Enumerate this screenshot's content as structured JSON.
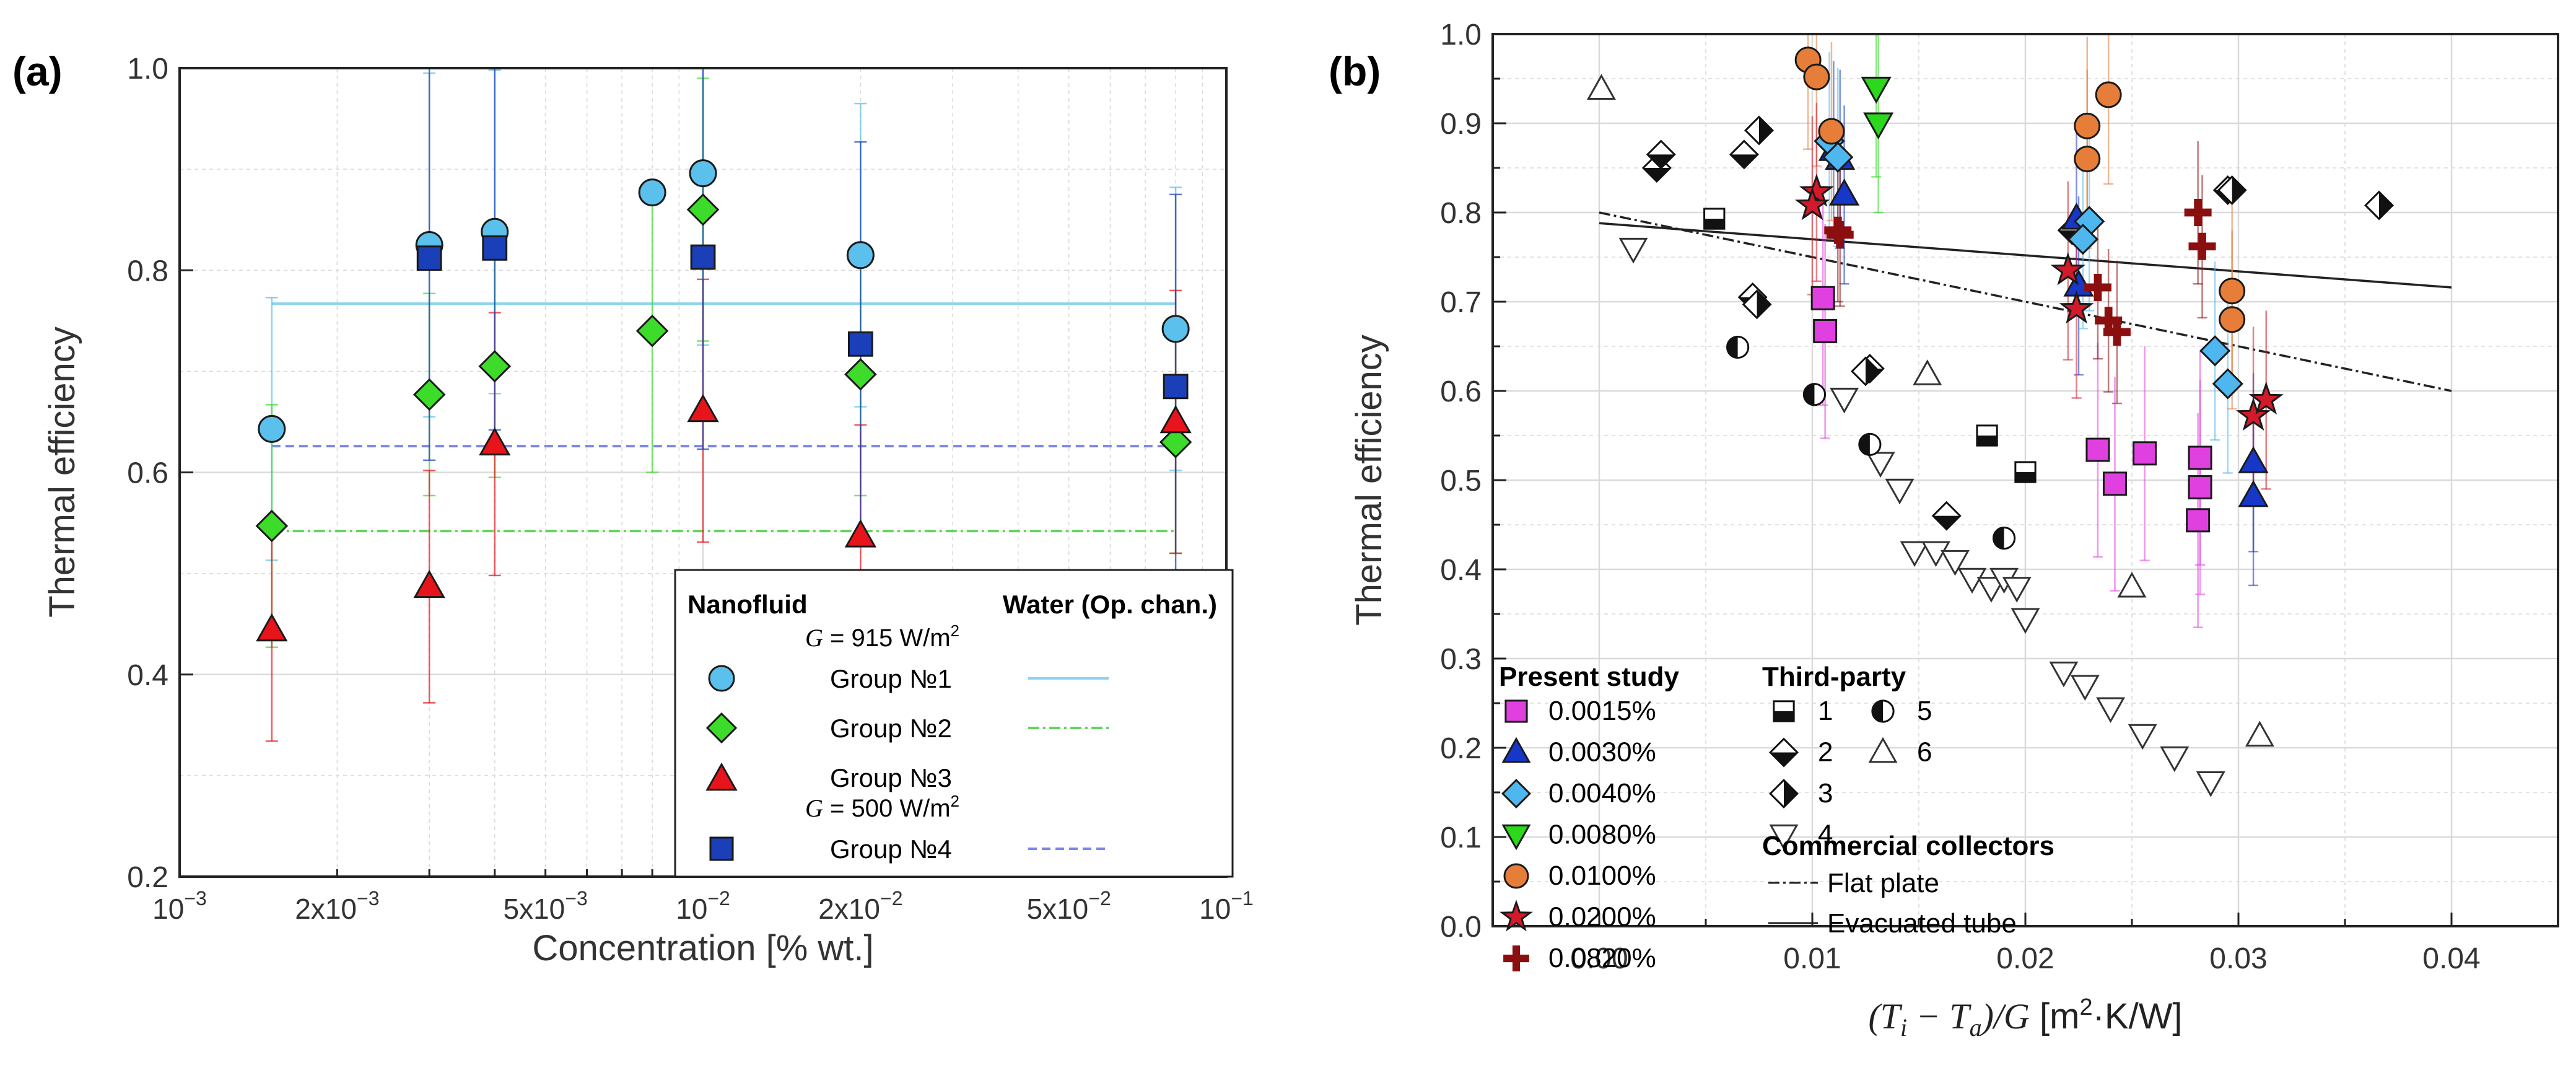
{
  "colors": {
    "cyan": "#5bc0eb",
    "green": "#3ddc2a",
    "red": "#e8141c",
    "blue": "#1a3fb8",
    "magenta": "#e040e0",
    "navy": "#1737c8",
    "lightblue": "#4fb7ef",
    "lime": "#2bd81b",
    "orange": "#e67e3a",
    "crimson": "#d21a2a",
    "darkred": "#8b0f0f",
    "gridline": "#d7d7d7",
    "refcyan": "#8ad4ef",
    "refgreen": "#5fd65a",
    "refblue": "#7a86e8"
  },
  "chart_data": [
    {
      "type": "scatter",
      "panel_label": "(a)",
      "xscale": "log",
      "xlim": [
        0.001,
        0.1
      ],
      "ylim": [
        0.2,
        1.0
      ],
      "xlabel": "Concentration  [% wt.]",
      "ylabel": "Thermal efficiency",
      "xtick_labels": [
        {
          "value": 0.001,
          "base": "10",
          "exp": "−3"
        },
        {
          "value": 0.002,
          "base": "2x10",
          "exp": "−3"
        },
        {
          "value": 0.005,
          "base": "5x10",
          "exp": "−3"
        },
        {
          "value": 0.01,
          "base": "10",
          "exp": "−2"
        },
        {
          "value": 0.02,
          "base": "2x10",
          "exp": "−2"
        },
        {
          "value": 0.05,
          "base": "5x10",
          "exp": "−2"
        },
        {
          "value": 0.1,
          "base": "10",
          "exp": "−1"
        }
      ],
      "ytick_labels": [
        "0.2",
        "0.4",
        "0.6",
        "0.8",
        "1.0"
      ],
      "yticks": [
        0.2,
        0.4,
        0.6,
        0.8,
        1.0
      ],
      "series": [
        {
          "name": "Group №1",
          "marker": "circle",
          "color": "#5bc0eb",
          "x": [
            0.0015,
            0.003,
            0.004,
            0.008,
            0.01,
            0.02,
            0.08
          ],
          "y": [
            0.643,
            0.825,
            0.838,
            0.877,
            0.896,
            0.815,
            0.742
          ],
          "err": [
            0.13,
            0.17,
            0.16,
            0.0,
            0.17,
            0.15,
            0.14
          ]
        },
        {
          "name": "Group №2",
          "marker": "diamond",
          "color": "#3ddc2a",
          "x": [
            0.0015,
            0.003,
            0.004,
            0.008,
            0.01,
            0.02,
            0.08
          ],
          "y": [
            0.547,
            0.677,
            0.705,
            0.74,
            0.86,
            0.697,
            0.63
          ],
          "err": [
            0.12,
            0.1,
            0.11,
            0.14,
            0.13,
            0.12,
            0.11
          ]
        },
        {
          "name": "Group №3",
          "marker": "triangle-up",
          "color": "#e8141c",
          "x": [
            0.0015,
            0.003,
            0.004,
            0.01,
            0.02,
            0.08
          ],
          "y": [
            0.444,
            0.487,
            0.628,
            0.661,
            0.537,
            0.65
          ],
          "err": [
            0.11,
            0.115,
            0.13,
            0.13,
            0.11,
            0.13
          ]
        },
        {
          "name": "Group №4",
          "marker": "square",
          "color": "#1a3fb8",
          "x": [
            0.003,
            0.004,
            0.01,
            0.02,
            0.08
          ],
          "y": [
            0.812,
            0.822,
            0.813,
            0.727,
            0.685
          ],
          "err": [
            0.2,
            0.18,
            0.19,
            0.2,
            0.19
          ]
        }
      ],
      "reference_lines": [
        {
          "name": "Group №1 water",
          "y": 0.767,
          "x_from": 0.0015,
          "x_to": 0.08,
          "style": "solid",
          "color": "#8ad4ef"
        },
        {
          "name": "Group №2 water",
          "y": 0.542,
          "x_from": 0.0015,
          "x_to": 0.08,
          "style": "dashdot",
          "color": "#5fd65a"
        },
        {
          "name": "Group №4 water",
          "y": 0.626,
          "x_from": 0.0015,
          "x_to": 0.08,
          "style": "dashed",
          "color": "#7a86e8"
        }
      ],
      "legend": {
        "placement": "lower-right",
        "col1_header": "Nanofluid",
        "col2_header": "Water (Op. chan.)",
        "g915": "= 915 W/m",
        "g500": "= 500 W/m",
        "g_symbol": "G",
        "sup2": "2",
        "items": [
          "Group №1",
          "Group №2",
          "Group №3",
          "Group №4"
        ]
      }
    },
    {
      "type": "scatter",
      "panel_label": "(b)",
      "xlim": [
        -0.005,
        0.045
      ],
      "ylim": [
        0.0,
        1.0
      ],
      "xlabel_parts": {
        "open": "(",
        "ti": "T",
        "i": "i",
        "minus": " − ",
        "ta": "T",
        "a": "a",
        "close": ")/",
        "g": "G",
        "units_open": " [m",
        "sup": "2",
        "units_close": "·K/W]"
      },
      "ylabel": "Thermal efficiency",
      "xticks": [
        0.0,
        0.01,
        0.02,
        0.03,
        0.04
      ],
      "xtick_labels": [
        "0.00",
        "0.01",
        "0.02",
        "0.03",
        "0.04"
      ],
      "yticks": [
        0.0,
        0.1,
        0.2,
        0.3,
        0.4,
        0.5,
        0.6,
        0.7,
        0.8,
        0.9,
        1.0
      ],
      "ytick_labels": [
        "0.0",
        "0.1",
        "0.2",
        "0.3",
        "0.4",
        "0.5",
        "0.6",
        "0.7",
        "0.8",
        "0.9",
        "1.0"
      ],
      "series": [
        {
          "name": "0.0015%",
          "marker": "square",
          "color": "#e040e0",
          "x": [
            0.0105,
            0.0106,
            0.0234,
            0.0242,
            0.0256,
            0.0282,
            0.0282,
            0.0281
          ],
          "y": [
            0.704,
            0.667,
            0.534,
            0.496,
            0.53,
            0.525,
            0.492,
            0.455
          ],
          "err": 0.12
        },
        {
          "name": "0.0030%",
          "marker": "triangle-up",
          "color": "#1737c8",
          "x": [
            0.011,
            0.0113,
            0.0115,
            0.0224,
            0.0225,
            0.0307,
            0.0307
          ],
          "y": [
            0.87,
            0.86,
            0.82,
            0.793,
            0.718,
            0.52,
            0.482
          ],
          "err": 0.1
        },
        {
          "name": "0.0040%",
          "marker": "diamond",
          "color": "#4fb7ef",
          "x": [
            0.0108,
            0.0112,
            0.023,
            0.0227,
            0.0289,
            0.0295
          ],
          "y": [
            0.88,
            0.862,
            0.79,
            0.77,
            0.645,
            0.608
          ],
          "err": 0.1
        },
        {
          "name": "0.0080%",
          "marker": "triangle-down",
          "color": "#2bd81b",
          "x": [
            0.013,
            0.0131
          ],
          "y": [
            0.94,
            0.9
          ],
          "err": 0.1
        },
        {
          "name": "0.0100%",
          "marker": "circle",
          "color": "#e67e3a",
          "x": [
            0.0098,
            0.0102,
            0.0109,
            0.0229,
            0.0229,
            0.0239,
            0.0297,
            0.0297
          ],
          "y": [
            0.971,
            0.952,
            0.891,
            0.897,
            0.86,
            0.932,
            0.712,
            0.68
          ],
          "err": 0.1
        },
        {
          "name": "0.0200%",
          "marker": "star",
          "color": "#d21a2a",
          "x": [
            0.0102,
            0.01,
            0.022,
            0.0224,
            0.0307,
            0.0313
          ],
          "y": [
            0.823,
            0.808,
            0.735,
            0.692,
            0.572,
            0.59
          ],
          "err": 0.1
        },
        {
          "name": "0.0820%",
          "marker": "plus",
          "color": "#8b0f0f",
          "x": [
            0.0112,
            0.0113,
            0.0234,
            0.0239,
            0.0243,
            0.0281,
            0.0283
          ],
          "y": [
            0.78,
            0.775,
            0.716,
            0.679,
            0.666,
            0.8,
            0.762
          ],
          "err": 0.08
        }
      ],
      "third_party": [
        {
          "name": "1",
          "marker": "square-half",
          "x": [
            0.0054,
            0.0182,
            0.02
          ],
          "y": [
            0.793,
            0.55,
            0.509
          ]
        },
        {
          "name": "2",
          "marker": "diamond-half",
          "x": [
            0.0027,
            0.0029,
            0.0068,
            0.0072,
            0.0127,
            0.0163,
            0.0222,
            0.0295
          ],
          "y": [
            0.85,
            0.865,
            0.865,
            0.705,
            0.625,
            0.46,
            0.78,
            0.825
          ]
        },
        {
          "name": "3",
          "marker": "diamond-right",
          "x": [
            0.0075,
            0.0074,
            0.0125,
            0.0366,
            0.0297
          ],
          "y": [
            0.892,
            0.697,
            0.622,
            0.808,
            0.825
          ]
        },
        {
          "name": "4",
          "marker": "triangle-down-open",
          "x": [
            0.0016,
            0.0115,
            0.0132,
            0.0141,
            0.0148,
            0.0158,
            0.0167,
            0.0175,
            0.0184,
            0.019,
            0.0196,
            0.02,
            0.0218,
            0.0228,
            0.024,
            0.0255,
            0.027,
            0.0287
          ],
          "y": [
            0.76,
            0.592,
            0.52,
            0.49,
            0.42,
            0.42,
            0.41,
            0.39,
            0.38,
            0.39,
            0.38,
            0.345,
            0.285,
            0.27,
            0.245,
            0.215,
            0.19,
            0.162
          ]
        },
        {
          "name": "5",
          "marker": "circle-half",
          "x": [
            0.0065,
            0.0101,
            0.0127,
            0.019
          ],
          "y": [
            0.649,
            0.596,
            0.54,
            0.435
          ]
        },
        {
          "name": "6",
          "marker": "triangle-up-open",
          "x": [
            0.0001,
            0.0154,
            0.025,
            0.031
          ],
          "y": [
            0.938,
            0.618,
            0.38,
            0.213
          ]
        }
      ],
      "reference_lines": [
        {
          "name": "Flat plate",
          "style": "dashdot",
          "x": [
            0.0,
            0.04
          ],
          "y": [
            0.8,
            0.6
          ]
        },
        {
          "name": "Evacuated tube",
          "style": "solid",
          "x": [
            0.0,
            0.04
          ],
          "y": [
            0.788,
            0.716
          ]
        }
      ],
      "legend": {
        "placement": "lower-left",
        "present_header": "Present study",
        "third_header": "Third-party",
        "commercial_header": "Commercial collectors",
        "flat_plate": "Flat plate",
        "evacuated_tube": "Evacuated tube",
        "tp_labels": [
          "1",
          "2",
          "3",
          "4",
          "5",
          "6"
        ]
      }
    }
  ]
}
